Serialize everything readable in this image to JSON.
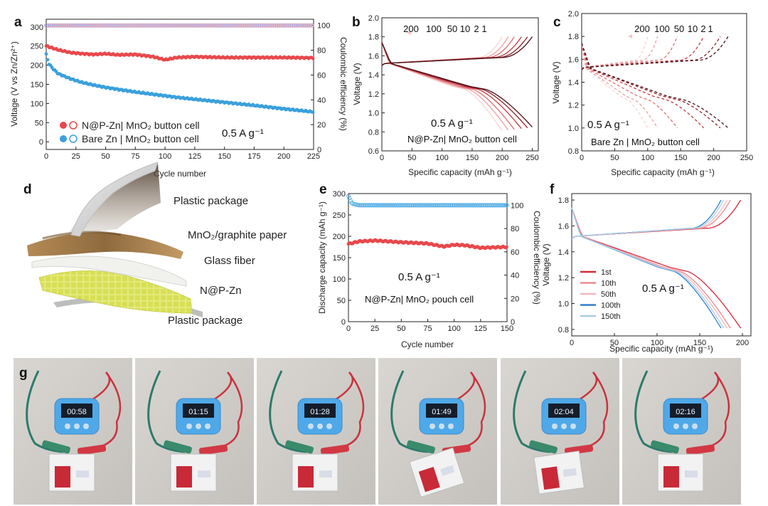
{
  "panel_labels": {
    "a": "a",
    "b": "b",
    "c": "c",
    "d": "d",
    "e": "e",
    "f": "f",
    "g": "g"
  },
  "colors": {
    "red": "#e8484c",
    "blue": "#3aa0dd",
    "pink": "#f2a7a8",
    "ce_blue": "#5ab0e6",
    "pink_ring": "#f0b2b4",
    "violet_ring": "#9a9be2",
    "rate_grad_start": "#f8d0d0",
    "rate_grad_end": "#9e1a1a",
    "sepia": "#8a6a3a",
    "grid_yellow": "#e6ec7a"
  },
  "chart_data": [
    {
      "id": "a",
      "type": "scatter",
      "xlabel": "Cycle number",
      "ylabel": "Voltage (V vs Zn/Zn²⁺)",
      "y2label": "Coulombic efficiency (%)",
      "xlim": [
        0,
        225
      ],
      "ylim": [
        -20,
        320
      ],
      "y2lim": [
        0,
        105
      ],
      "xticks": [
        0,
        25,
        50,
        75,
        100,
        125,
        150,
        175,
        200,
        225
      ],
      "yticks": [
        0,
        50,
        100,
        150,
        200,
        250,
        300
      ],
      "y2ticks": [
        0,
        20,
        40,
        60,
        80,
        100
      ],
      "annotation": "0.5 A g⁻¹",
      "legend": [
        "N@P-Zn| MnO₂ button cell",
        "Bare Zn | MnO₂ button cell"
      ],
      "series": [
        {
          "name": "N@P-Zn| MnO₂ button cell",
          "color": "#e8484c",
          "x": [
            0,
            5,
            10,
            20,
            30,
            40,
            50,
            60,
            75,
            90,
            100,
            110,
            125,
            150,
            175,
            200,
            225
          ],
          "y": [
            250,
            245,
            240,
            233,
            230,
            228,
            230,
            227,
            228,
            222,
            214,
            220,
            222,
            220,
            220,
            220,
            219
          ]
        },
        {
          "name": "Bare Zn | MnO₂ button cell",
          "color": "#3aa0dd",
          "x": [
            0,
            2,
            5,
            10,
            20,
            30,
            40,
            50,
            60,
            75,
            90,
            100,
            110,
            125,
            150,
            175,
            200,
            225
          ],
          "y": [
            228,
            205,
            193,
            178,
            165,
            155,
            148,
            142,
            137,
            130,
            124,
            120,
            116,
            111,
            103,
            95,
            86,
            78
          ]
        },
        {
          "name": "N@P-Zn CE",
          "axis": "y2",
          "color": "#f0b2b4",
          "x": [
            0,
            225
          ],
          "y": [
            100,
            100
          ]
        },
        {
          "name": "Bare Zn CE",
          "axis": "y2",
          "color": "#9a9be2",
          "x": [
            0,
            225
          ],
          "y": [
            100,
            100
          ]
        }
      ]
    },
    {
      "id": "b",
      "type": "line",
      "xlabel": "Specific capacity (mAh g⁻¹)",
      "ylabel": "Voltage (V)",
      "xlim": [
        0,
        260
      ],
      "ylim": [
        0.6,
        2.0
      ],
      "xticks": [
        0,
        50,
        100,
        150,
        200,
        250
      ],
      "yticks": [
        0.6,
        0.8,
        1.0,
        1.2,
        1.4,
        1.6,
        1.8,
        2.0
      ],
      "annotation": "0.5 A g⁻¹",
      "caption": "N@P-Zn| MnO₂ button cell",
      "series_labels": [
        "200",
        "100",
        "50",
        "10",
        "2",
        "1"
      ],
      "series_colors": [
        "#f7d3d3",
        "#ee9fa1",
        "#de6e73",
        "#c13a44",
        "#8f1f27",
        "#4a0d12"
      ],
      "capacities": [
        200,
        210,
        220,
        232,
        242,
        250
      ]
    },
    {
      "id": "c",
      "type": "line",
      "xlabel": "Specific capacity (mAh g⁻¹)",
      "ylabel": "Voltage (V)",
      "xlim": [
        0,
        250
      ],
      "ylim": [
        0.8,
        2.0
      ],
      "xticks": [
        0,
        50,
        100,
        150,
        200,
        250
      ],
      "yticks": [
        0.8,
        1.0,
        1.2,
        1.4,
        1.6,
        1.8,
        2.0
      ],
      "annotation": "0.5 A g⁻¹",
      "caption": "Bare Zn | MnO₂ button cell",
      "series_labels": [
        "200",
        "100",
        "50",
        "10",
        "2",
        "1"
      ],
      "series_colors": [
        "#f7d3d3",
        "#ee9fa1",
        "#de6e73",
        "#c13a44",
        "#8f1f27",
        "#4a0d12"
      ],
      "capacities": [
        100,
        115,
        145,
        185,
        210,
        222
      ]
    },
    {
      "id": "e",
      "type": "scatter",
      "xlabel": "Cycle number",
      "ylabel": "Discharge capacity (mAh g⁻¹)",
      "y2label": "Coulombic efficiency (%)",
      "xlim": [
        0,
        150
      ],
      "ylim": [
        0,
        300
      ],
      "y2lim": [
        0,
        110
      ],
      "xticks": [
        0,
        25,
        50,
        75,
        100,
        125,
        150
      ],
      "yticks": [
        0,
        50,
        100,
        150,
        200,
        250,
        300
      ],
      "y2ticks": [
        0,
        20,
        40,
        60,
        80,
        100
      ],
      "annotation": "0.5 A g⁻¹",
      "caption": "N@P-Zn| MnO₂ pouch cell",
      "series": [
        {
          "name": "Discharge capacity",
          "color": "#e8484c",
          "x": [
            0,
            10,
            25,
            50,
            75,
            90,
            100,
            110,
            125,
            150
          ],
          "y": [
            182,
            188,
            190,
            186,
            183,
            176,
            180,
            179,
            173,
            175
          ]
        },
        {
          "name": "Coulombic efficiency",
          "axis": "y2",
          "color": "#5ab0e6",
          "x": [
            0,
            1,
            2,
            3,
            5,
            10,
            150
          ],
          "y": [
            108,
            106,
            104,
            102,
            101,
            100,
            100
          ]
        }
      ]
    },
    {
      "id": "f",
      "type": "line",
      "xlabel": "Specific capacity (mAh g⁻¹)",
      "ylabel": "Voltage (V)",
      "xlim": [
        0,
        210
      ],
      "ylim": [
        0.75,
        1.85
      ],
      "xticks": [
        0,
        50,
        100,
        150,
        200
      ],
      "yticks": [
        0.8,
        1.0,
        1.2,
        1.4,
        1.6,
        1.8
      ],
      "annotation": "0.5 A g⁻¹",
      "series_labels": [
        "1st",
        "10th",
        "50th",
        "100th",
        "150th"
      ],
      "series_colors": [
        "#d8283a",
        "#ee8a8e",
        "#f3b8bf",
        "#2f7fcf",
        "#a9cde6"
      ],
      "capacities": [
        198,
        186,
        182,
        175,
        178
      ]
    }
  ],
  "diagram_d": {
    "labels": [
      "Plastic package",
      "MnO₂/graphite paper",
      "Glass fiber",
      "N@P-Zn",
      "Plastic package"
    ]
  },
  "photos_g": {
    "count": 6,
    "tilts": [
      0,
      0,
      0,
      -18,
      -8,
      0
    ],
    "displays": [
      "00:58",
      "01:15",
      "01:28",
      "01:49",
      "02:04",
      "02:16"
    ]
  }
}
